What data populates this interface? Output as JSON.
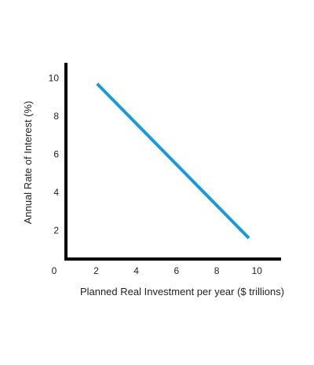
{
  "chart_data": {
    "type": "line",
    "xlabel": "Planned Real Investment per year ($ trillions)",
    "ylabel": "Annual Rate of Interest (%)",
    "xlim": [
      0.5,
      11.2
    ],
    "ylim": [
      0.5,
      10.8
    ],
    "origin_label": "0",
    "x_ticks": [
      2,
      4,
      6,
      8,
      10
    ],
    "y_ticks": [
      2,
      4,
      6,
      8,
      10
    ],
    "grid": false,
    "legend": "none",
    "series": [
      {
        "color": "#1a9bd7",
        "x": [
          2.05,
          9.6
        ],
        "y": [
          9.7,
          1.6
        ]
      }
    ]
  }
}
